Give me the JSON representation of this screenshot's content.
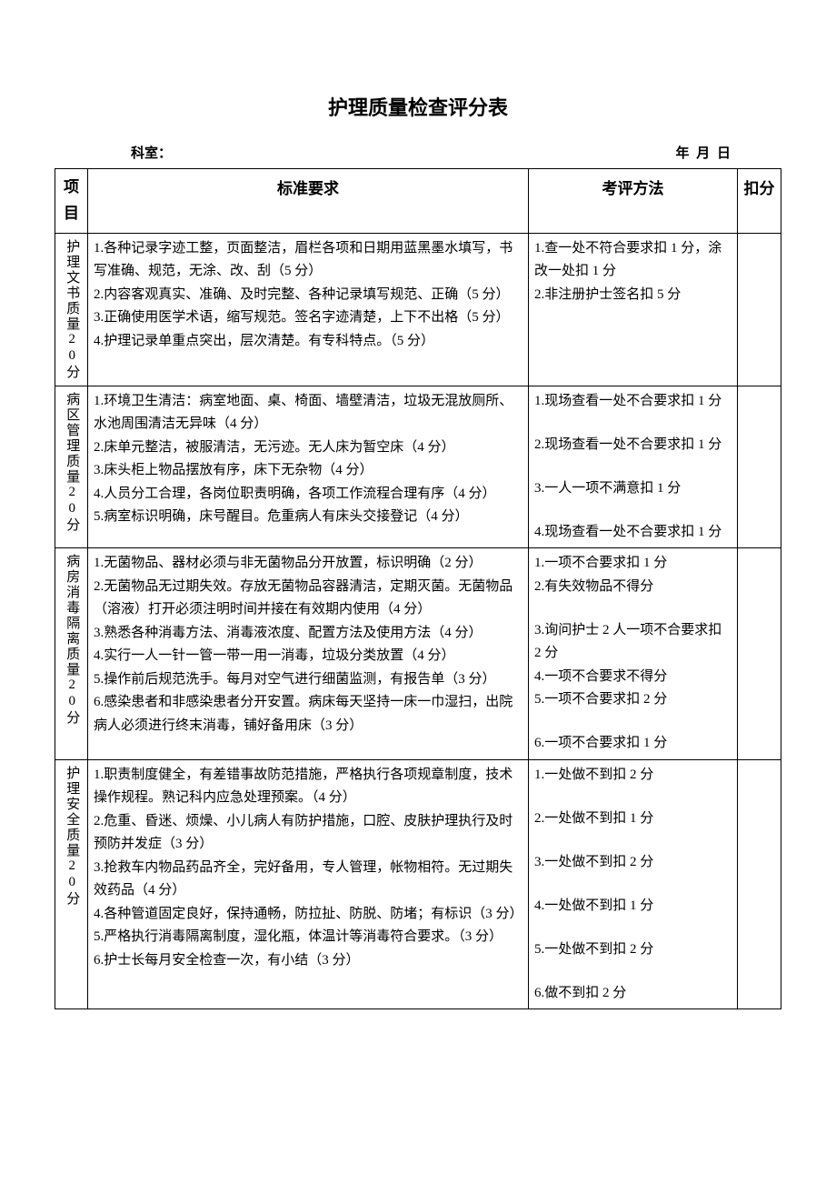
{
  "title": "护理质量检查评分表",
  "header": {
    "dept_label": "科室：",
    "date_label": "年    月      日"
  },
  "columns": {
    "category": "项目",
    "standard": "标准要求",
    "method": "考评方法",
    "deduction": "扣分"
  },
  "rows": [
    {
      "category": "护理文书质量20分",
      "standard": [
        "1.各种记录字迹工整，页面整洁，眉栏各项和日期用蓝黑墨水填写，书写准确、规范，无涂、改、刮（5 分）",
        "2.内容客观真实、准确、及时完整、各种记录填写规范、正确（5 分）",
        "3.正确使用医学术语，缩写规范。签名字迹清楚，上下不出格（5 分）",
        "4.护理记录单重点突出，层次清楚。有专科特点。（5 分）"
      ],
      "method": [
        "1.查一处不符合要求扣 1 分，涂改一处扣 1 分",
        "2.非注册护士签名扣 5 分"
      ]
    },
    {
      "category": "病区管理质量20分",
      "standard": [
        "1.环境卫生清洁：病室地面、桌、椅面、墙壁清洁，垃圾无混放厕所、水池周围清洁无异味（4 分）",
        "2.床单元整洁，被服清洁，无污迹。无人床为暂空床（4 分）",
        "3.床头柜上物品摆放有序，床下无杂物（4 分）",
        "4.人员分工合理，各岗位职责明确，各项工作流程合理有序（4 分）",
        "5.病室标识明确，床号醒目。危重病人有床头交接登记（4 分）"
      ],
      "method": [
        "1.现场查看一处不合要求扣 1 分",
        "",
        "2.现场查看一处不合要求扣 1 分",
        "",
        "3.一人一项不满意扣 1 分",
        "",
        "4.现场查看一处不合要求扣 1 分"
      ]
    },
    {
      "category": "病房消毒隔离质量20分",
      "standard": [
        "1.无菌物品、器材必须与非无菌物品分开放置，标识明确（2 分）",
        "2.无菌物品无过期失效。存放无菌物品容器清洁，定期灭菌。无菌物品（溶液）打开必须注明时间并接在有效期内使用（4 分）",
        "3.熟悉各种消毒方法、消毒液浓度、配置方法及使用方法（4 分）",
        "4.实行一人一针一管一带一用一消毒，垃圾分类放置（4 分）",
        "5.操作前后规范洗手。每月对空气进行细菌监测，有报告单（3 分）",
        "6.感染患者和非感染患者分开安置。病床每天坚持一床一巾湿扫，出院病人必须进行终末消毒，铺好备用床（3 分）"
      ],
      "method": [
        "1.一项不合要求扣 1 分",
        "2.有失效物品不得分",
        "",
        "3.询问护士 2 人一项不合要求扣 2 分",
        "4.一项不合要求不得分",
        "5.一项不合要求扣 2 分",
        "",
        "6.一项不合要求扣 1 分"
      ]
    },
    {
      "category": "护理安全质量20分",
      "standard": [
        "1.职责制度健全，有差错事故防范措施，严格执行各项规章制度，技术操作规程。熟记科内应急处理预案。（4 分）",
        "2.危重、昏迷、烦燥、小儿病人有防护措施，口腔、皮肤护理执行及时预防并发症（3 分）",
        "3.抢救车内物品药品齐全，完好备用，专人管理，帐物相符。无过期失效药品（4 分）",
        "4.各种管道固定良好，保持通畅，防拉扯、防脱、防堵；有标识（3 分）",
        "5.严格执行消毒隔离制度，湿化瓶，体温计等消毒符合要求。（3 分）",
        "6.护士长每月安全检查一次，有小结（3 分）"
      ],
      "method": [
        "1.一处做不到扣 2 分",
        "",
        "2.一处做不到扣 1 分",
        "",
        "3.一处做不到扣 2  分",
        "",
        "4.一处做不到扣 1 分",
        "",
        "5.一处做不到扣 2 分",
        "",
        "6.做不到扣 2 分"
      ]
    }
  ]
}
